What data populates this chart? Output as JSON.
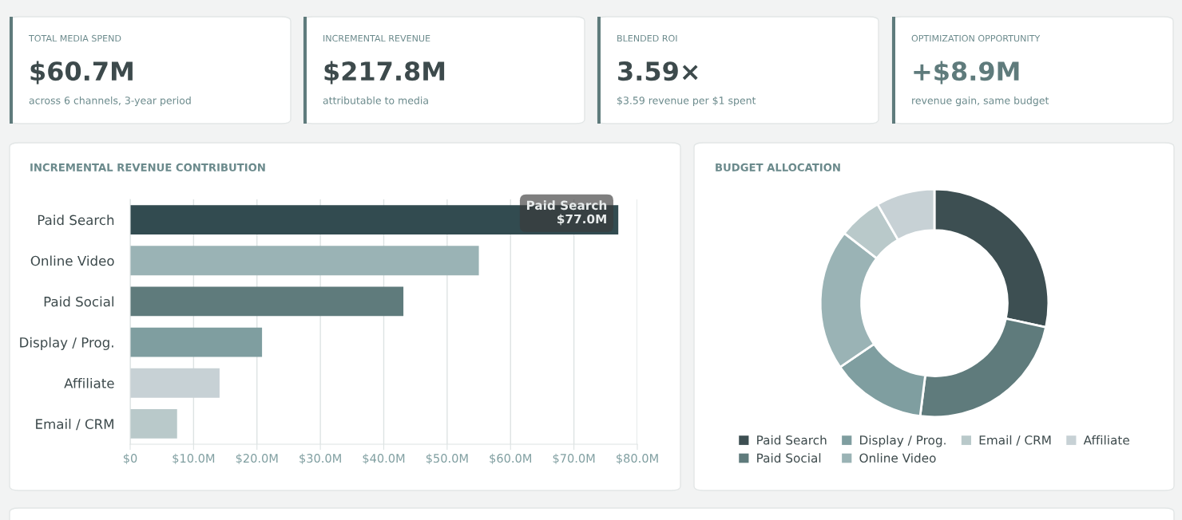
{
  "chart_data": [
    {
      "type": "other",
      "annotations": [
        "TOTAL MEDIA SPEND",
        "$60.7M",
        "across 6 channels, 3-year period",
        "INCREMENTAL REVENUE",
        "$217.8M",
        "attributable to media",
        "BLENDED ROI",
        "3.59×",
        "$3.59 revenue per $1 spent",
        "OPTIMIZATION OPPORTUNITY",
        "+$8.9M",
        "revenue gain, same budget"
      ]
    },
    {
      "type": "bar",
      "orientation": "horizontal",
      "title": "INCREMENTAL REVENUE CONTRIBUTION",
      "categories": [
        "Paid Search",
        "Online Video",
        "Paid Social",
        "Display / Prog.",
        "Affiliate",
        "Email / CRM"
      ],
      "values": [
        77.0,
        55.0,
        43.1,
        20.8,
        14.1,
        7.4
      ],
      "colors": [
        "#324b50",
        "#9ab3b5",
        "#5f7b7c",
        "#7f9ea0",
        "#c7d1d5",
        "#b9c9ca"
      ],
      "xlim": [
        0,
        80
      ],
      "xticks": [
        {
          "value": 0,
          "label": "$0"
        },
        {
          "value": 10,
          "label": "$10.0M"
        },
        {
          "value": 20,
          "label": "$20.0M"
        },
        {
          "value": 30,
          "label": "$30.0M"
        },
        {
          "value": 40,
          "label": "$40.0M"
        },
        {
          "value": 50,
          "label": "$50.0M"
        },
        {
          "value": 60,
          "label": "$60.0M"
        },
        {
          "value": 70,
          "label": "$70.0M"
        },
        {
          "value": 80,
          "label": "$80.0M"
        }
      ],
      "grid": "x",
      "annotations": [
        {
          "text": "Paid Search\n$77.0M",
          "x": 77.0,
          "y": "Paid Search"
        }
      ]
    },
    {
      "type": "donut",
      "title": "BUDGET ALLOCATION",
      "categories": [
        "Paid Search",
        "Paid Social",
        "Display / Prog.",
        "Online Video",
        "Email / CRM",
        "Affiliate"
      ],
      "values": [
        28.4,
        23.6,
        13.5,
        20.0,
        6.2,
        8.3
      ],
      "colors": [
        "#3d4f52",
        "#5f7b7c",
        "#7f9ea0",
        "#9ab3b5",
        "#b9c9ca",
        "#c7d1d5"
      ],
      "legend": "bottom"
    }
  ]
}
